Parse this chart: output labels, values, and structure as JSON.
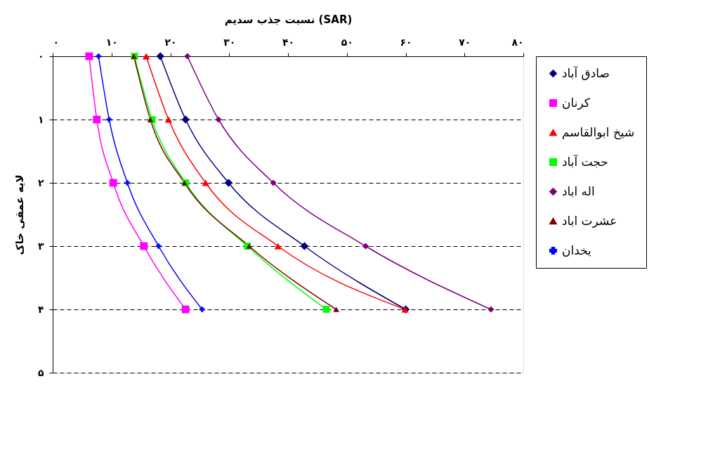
{
  "chart_data": {
    "type": "line",
    "orientation": "horizontal",
    "xlabel": "نسبت جذب سدیم (SAR)",
    "ylabel": "لایه عمقی خاک",
    "x": [
      0,
      1,
      2,
      3,
      4
    ],
    "xlim": [
      0,
      80
    ],
    "xticks": [
      {
        "value": 0,
        "label": "۰"
      },
      {
        "value": 10,
        "label": "۱۰"
      },
      {
        "value": 20,
        "label": "۲۰"
      },
      {
        "value": 30,
        "label": "۳۰"
      },
      {
        "value": 40,
        "label": "۴۰"
      },
      {
        "value": 50,
        "label": "۵۰"
      },
      {
        "value": 60,
        "label": "۶۰"
      },
      {
        "value": 70,
        "label": "۷۰"
      },
      {
        "value": 80,
        "label": "۸۰"
      }
    ],
    "ylim": [
      5,
      0
    ],
    "yticks": [
      {
        "value": 0,
        "label": "۰"
      },
      {
        "value": 1,
        "label": "۱"
      },
      {
        "value": 2,
        "label": "۲"
      },
      {
        "value": 3,
        "label": "۳"
      },
      {
        "value": 4,
        "label": "۴"
      },
      {
        "value": 5,
        "label": "۵"
      }
    ],
    "grid": "y",
    "legend": "right",
    "line_style": "solid",
    "series": [
      {
        "name": "صادق آباد",
        "color": "#000080",
        "marker": "diamond",
        "values": [
          18.3,
          22.6,
          29.9,
          42.8,
          60.0
        ]
      },
      {
        "name": "کرنان",
        "color": "#ff00ff",
        "marker": "square",
        "values": [
          6.2,
          7.5,
          10.3,
          15.5,
          22.6
        ]
      },
      {
        "name": "شیخ ابوالقاسم",
        "color": "#ff0000",
        "marker": "triangle",
        "values": [
          15.9,
          19.7,
          26.0,
          38.3,
          59.9
        ]
      },
      {
        "name": "حجت آباد",
        "color": "#00ff00",
        "marker": "square",
        "values": [
          13.9,
          16.9,
          22.6,
          33.1,
          46.5
        ]
      },
      {
        "name": "اله اباد",
        "color": "#800080",
        "marker": "diamond",
        "values": [
          22.9,
          28.2,
          37.5,
          53.2,
          74.5
        ]
      },
      {
        "name": "عشرت اباد",
        "color": "#800000",
        "marker": "triangle",
        "values": [
          13.8,
          16.6,
          22.4,
          33.4,
          48.2
        ]
      },
      {
        "name": "یخدان",
        "color": "#0000ff",
        "marker": "cross",
        "values": [
          7.8,
          9.6,
          12.7,
          18.0,
          25.4
        ]
      }
    ]
  }
}
